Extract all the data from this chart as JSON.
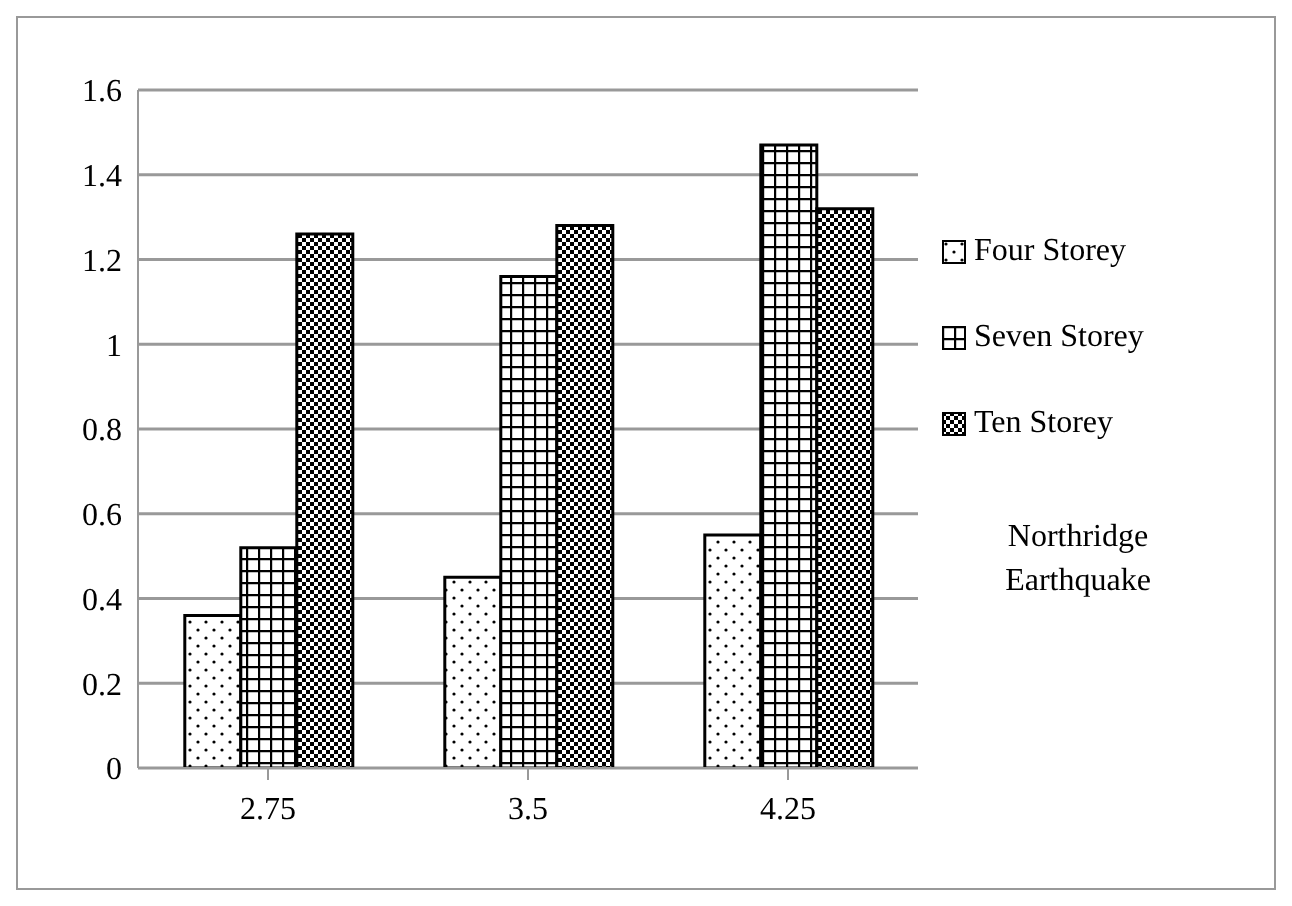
{
  "chart_data": {
    "type": "bar",
    "categories": [
      "2.75",
      "3.5",
      "4.25"
    ],
    "series": [
      {
        "name": "Four Storey",
        "color": "#000000",
        "values": [
          0.36,
          0.45,
          0.55
        ]
      },
      {
        "name": "Seven Storey",
        "color": "#000000",
        "values": [
          0.52,
          1.16,
          1.47
        ]
      },
      {
        "name": "Ten Storey",
        "color": "#000000",
        "values": [
          1.26,
          1.28,
          1.32
        ]
      }
    ],
    "ylim": [
      0,
      1.6
    ],
    "yticks": [
      0,
      0.2,
      0.4,
      0.6,
      0.8,
      1,
      1.2,
      1.4,
      1.6
    ],
    "grid": "y",
    "legend": "right",
    "annotations": [
      "Northridge Earthquake"
    ]
  }
}
